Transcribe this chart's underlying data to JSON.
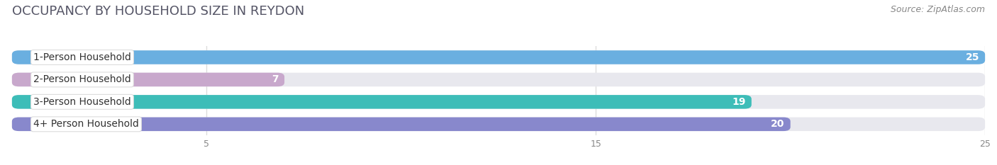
{
  "title": "OCCUPANCY BY HOUSEHOLD SIZE IN REYDON",
  "source": "Source: ZipAtlas.com",
  "categories": [
    "1-Person Household",
    "2-Person Household",
    "3-Person Household",
    "4+ Person Household"
  ],
  "values": [
    25,
    7,
    19,
    20
  ],
  "bar_colors": [
    "#6aafe0",
    "#c8a8cc",
    "#3dbdb8",
    "#8888cc"
  ],
  "track_color": "#e8e8ee",
  "label_bg_color": "#ffffff",
  "label_border_color": "#dddddd",
  "xlim": [
    0,
    25
  ],
  "xticks": [
    5,
    15,
    25
  ],
  "bar_height": 0.62,
  "background_color": "#ffffff",
  "title_fontsize": 13,
  "source_fontsize": 9,
  "label_fontsize": 10,
  "value_fontsize": 10
}
